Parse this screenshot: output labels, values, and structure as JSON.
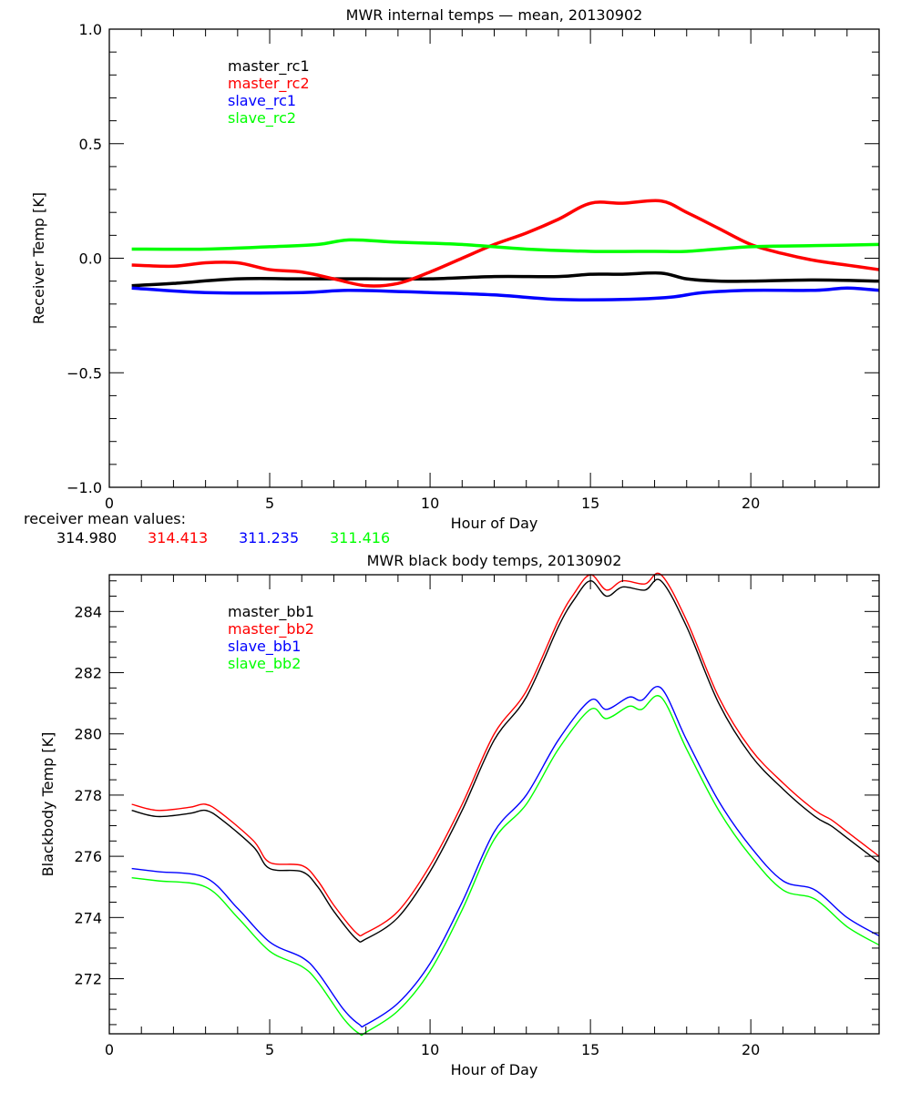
{
  "chart_data": [
    {
      "type": "line",
      "title": "MWR internal temps — mean, 20130902",
      "xlabel": "Hour of Day",
      "ylabel": "Receiver Temp [K]",
      "xlim": [
        0,
        24
      ],
      "ylim": [
        -1.0,
        1.0
      ],
      "xticks": [
        0,
        5,
        10,
        15,
        20
      ],
      "yticks": [
        -1.0,
        -0.5,
        0.0,
        0.5,
        1.0
      ],
      "ytick_labels": [
        "−1.0",
        "−0.5",
        "0.0",
        "0.5",
        "1.0"
      ],
      "grid": false,
      "legend_placement": "top-left",
      "series": [
        {
          "name": "master_rc1",
          "color": "#000000",
          "x": [
            0.7,
            2,
            4,
            6,
            8,
            10,
            12,
            14,
            15,
            16,
            17.2,
            18,
            19,
            20,
            22,
            24
          ],
          "y": [
            -0.12,
            -0.11,
            -0.09,
            -0.09,
            -0.09,
            -0.09,
            -0.08,
            -0.08,
            -0.07,
            -0.07,
            -0.065,
            -0.09,
            -0.1,
            -0.1,
            -0.095,
            -0.1
          ]
        },
        {
          "name": "master_rc2",
          "color": "#ff0000",
          "x": [
            0.7,
            2,
            3,
            4,
            5,
            6,
            7,
            8,
            9,
            10,
            11,
            12,
            13,
            14,
            15,
            16,
            17.2,
            18,
            19,
            20,
            21,
            22,
            23,
            24
          ],
          "y": [
            -0.03,
            -0.035,
            -0.02,
            -0.02,
            -0.05,
            -0.06,
            -0.09,
            -0.12,
            -0.11,
            -0.06,
            0.0,
            0.06,
            0.11,
            0.17,
            0.24,
            0.24,
            0.25,
            0.2,
            0.13,
            0.06,
            0.02,
            -0.01,
            -0.03,
            -0.05
          ]
        },
        {
          "name": "slave_rc1",
          "color": "#0000ff",
          "x": [
            0.7,
            3,
            6,
            7.5,
            10,
            12,
            14,
            16,
            17.5,
            18.5,
            20,
            22,
            23,
            24
          ],
          "y": [
            -0.13,
            -0.15,
            -0.15,
            -0.14,
            -0.15,
            -0.16,
            -0.18,
            -0.18,
            -0.17,
            -0.15,
            -0.14,
            -0.14,
            -0.13,
            -0.14
          ]
        },
        {
          "name": "slave_rc2",
          "color": "#00ff00",
          "x": [
            0.7,
            3,
            5,
            6.5,
            7.5,
            9,
            11,
            13,
            15,
            17,
            18,
            20,
            22,
            24
          ],
          "y": [
            0.04,
            0.04,
            0.05,
            0.06,
            0.08,
            0.07,
            0.06,
            0.04,
            0.03,
            0.03,
            0.03,
            0.05,
            0.055,
            0.06
          ]
        }
      ],
      "annotation_label": "receiver mean values:",
      "mean_values": [
        {
          "value": "314.980",
          "color": "#000000"
        },
        {
          "value": "314.413",
          "color": "#ff0000"
        },
        {
          "value": "311.235",
          "color": "#0000ff"
        },
        {
          "value": "311.416",
          "color": "#00ff00"
        }
      ]
    },
    {
      "type": "line",
      "title": "MWR black body temps, 20130902",
      "xlabel": "Hour of Day",
      "ylabel": "Blackbody Temp [K]",
      "xlim": [
        0,
        24
      ],
      "ylim": [
        270.2,
        285.2
      ],
      "xticks": [
        0,
        5,
        10,
        15,
        20
      ],
      "yticks": [
        272,
        274,
        276,
        278,
        280,
        282,
        284
      ],
      "grid": false,
      "legend_placement": "top-left",
      "series": [
        {
          "name": "master_bb1",
          "color": "#000000",
          "x": [
            0.7,
            1.5,
            2.5,
            3,
            3.5,
            4.5,
            5,
            6,
            6.5,
            7,
            7.7,
            8,
            9,
            10,
            11,
            12,
            13,
            14,
            14.5,
            15,
            15.5,
            16,
            16.7,
            17.2,
            18,
            19,
            20,
            21,
            22,
            22.5,
            23,
            24
          ],
          "y": [
            277.5,
            277.3,
            277.4,
            277.5,
            277.2,
            276.3,
            275.6,
            275.5,
            275.0,
            274.2,
            273.3,
            273.3,
            274.0,
            275.5,
            277.5,
            279.8,
            281.2,
            283.5,
            284.4,
            285.0,
            284.5,
            284.8,
            284.7,
            285.0,
            283.5,
            281.0,
            279.3,
            278.2,
            277.3,
            277.0,
            276.6,
            275.8
          ]
        },
        {
          "name": "master_bb2",
          "color": "#ff0000",
          "x": [
            0.7,
            1.5,
            2.5,
            3,
            3.5,
            4.5,
            5,
            6,
            6.5,
            7,
            7.7,
            8,
            9,
            10,
            11,
            12,
            13,
            14,
            14.5,
            15,
            15.5,
            16,
            16.7,
            17.2,
            18,
            19,
            20,
            21,
            22,
            22.5,
            23,
            24
          ],
          "y": [
            277.7,
            277.5,
            277.6,
            277.7,
            277.4,
            276.5,
            275.8,
            275.7,
            275.2,
            274.4,
            273.5,
            273.5,
            274.2,
            275.7,
            277.7,
            280.0,
            281.4,
            283.7,
            284.6,
            285.2,
            284.7,
            285.0,
            284.9,
            285.2,
            283.7,
            281.2,
            279.5,
            278.4,
            277.5,
            277.2,
            276.8,
            276.0
          ]
        },
        {
          "name": "slave_bb1",
          "color": "#0000ff",
          "x": [
            0.7,
            1.5,
            3,
            4,
            5,
            6,
            6.5,
            7.3,
            7.8,
            8,
            9,
            10,
            11,
            12,
            13,
            14,
            15,
            15.5,
            16.2,
            16.6,
            17.2,
            18,
            19,
            20,
            21,
            22,
            23,
            24
          ],
          "y": [
            275.6,
            275.5,
            275.3,
            274.3,
            273.2,
            272.7,
            272.2,
            271.0,
            270.5,
            270.5,
            271.2,
            272.5,
            274.5,
            276.8,
            278.0,
            279.8,
            281.1,
            280.8,
            281.2,
            281.1,
            281.5,
            279.8,
            277.8,
            276.3,
            275.2,
            274.9,
            274.0,
            273.4
          ]
        },
        {
          "name": "slave_bb2",
          "color": "#00ff00",
          "x": [
            0.7,
            1.5,
            3,
            4,
            5,
            6,
            6.5,
            7.3,
            7.8,
            8,
            9,
            10,
            11,
            12,
            13,
            14,
            15,
            15.5,
            16.2,
            16.6,
            17.2,
            18,
            19,
            20,
            21,
            22,
            23,
            24
          ],
          "y": [
            275.3,
            275.2,
            275.0,
            274.0,
            272.9,
            272.4,
            271.9,
            270.7,
            270.2,
            270.25,
            270.95,
            272.25,
            274.25,
            276.55,
            277.7,
            279.5,
            280.8,
            280.5,
            280.9,
            280.8,
            281.2,
            279.5,
            277.5,
            276.0,
            274.9,
            274.6,
            273.7,
            273.1
          ]
        }
      ]
    }
  ]
}
